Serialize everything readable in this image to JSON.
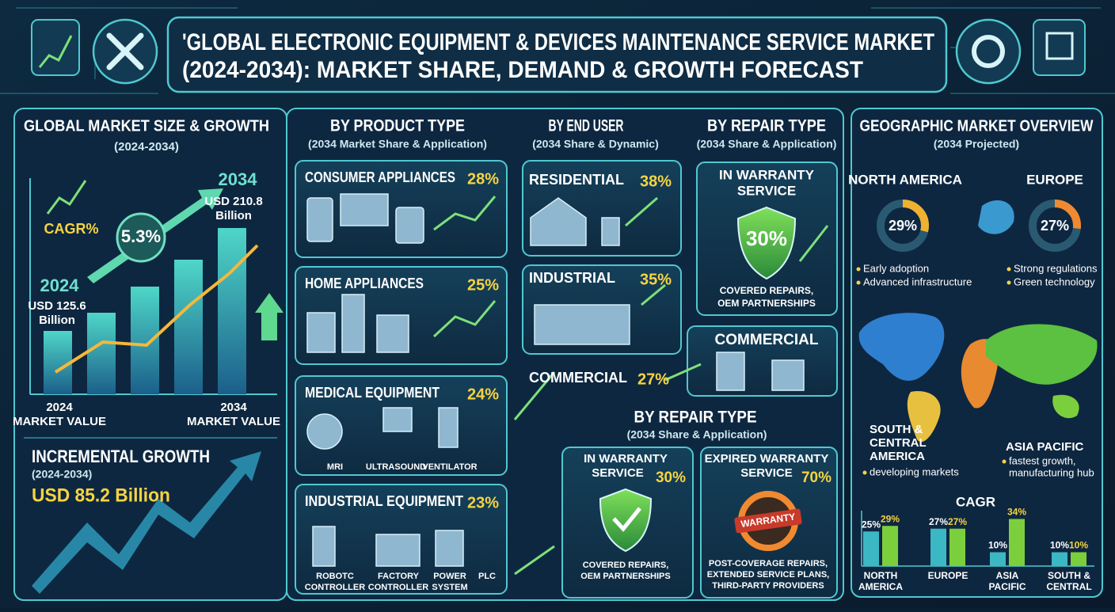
{
  "header": {
    "title_lines": [
      "'GLOBAL ELECTRONIC EQUIPMENT & DEVICES MAINTENANCE SERVICE MARKET",
      "(2024-2034): MARKET SHARE, DEMAND & GROWTH FORECAST"
    ]
  },
  "market_size": {
    "title": "GLOBAL MARKET SIZE & GROWTH",
    "period": "(2024-2034)",
    "cagr_label": "CAGR%",
    "cagr_value": "5.3%",
    "start": {
      "year": "2024",
      "value_lines": [
        "USD 125.6",
        "Billion"
      ],
      "axis_label": [
        "2024",
        "MARKET VALUE"
      ]
    },
    "end": {
      "year": "2034",
      "value_lines": [
        "USD 210.8",
        "Billion"
      ],
      "axis_label": [
        "2034",
        "MARKET VALUE"
      ]
    }
  },
  "incremental": {
    "title": "INCREMENTAL GROWTH",
    "period": "(2024-2034)",
    "value": "USD 85.2 Billion"
  },
  "product_type": {
    "title": "BY PRODUCT TYPE",
    "subtitle": "(2034 Market Share & Application)",
    "items": [
      {
        "name": "CONSUMER APPLIANCES",
        "share": "28%"
      },
      {
        "name": "HOME APPLIANCES",
        "share": "25%"
      },
      {
        "name": "MEDICAL EQUIPMENT",
        "share": "24%",
        "devices": [
          [
            "MRI"
          ],
          [
            "ULTRASOUND"
          ],
          [
            "VENTILATOR"
          ]
        ]
      },
      {
        "name": "INDUSTRIAL EQUIPMENT",
        "share": "23%",
        "devices": [
          [
            "ROBOTC",
            "CONTROLLER"
          ],
          [
            "FACTORY",
            "CONTROLLER"
          ],
          [
            "POWER",
            "SYSTEM"
          ],
          [
            "PLC"
          ]
        ]
      }
    ]
  },
  "end_user": {
    "title": "BY END USER",
    "subtitle": "(2034 Share & Dynamic)",
    "items": [
      {
        "name": "RESIDENTIAL",
        "share": "38%"
      },
      {
        "name": "INDUSTRIAL",
        "share": "35%"
      },
      {
        "name": "COMMERCIAL",
        "share": "27%"
      }
    ]
  },
  "repair_type_top": {
    "title": "BY REPAIR TYPE",
    "subtitle": "(2034 Share & Application)",
    "card": {
      "name_lines": [
        "IN WARRANTY",
        "SERVICE"
      ],
      "share": "30%",
      "note_lines": [
        "COVERED REPAIRS,",
        "OEM PARTNERSHIPS"
      ]
    },
    "commercial_card": "COMMERCIAL"
  },
  "repair_type": {
    "title": "BY REPAIR TYPE",
    "subtitle": "(2034 Share & Application)",
    "items": [
      {
        "name_lines": [
          "IN WARRANTY",
          "SERVICE"
        ],
        "share": "30%",
        "note_lines": [
          "COVERED REPAIRS,",
          "OEM PARTNERSHIPS"
        ]
      },
      {
        "name_lines": [
          "EXPIRED WARRANTY",
          "SERVICE"
        ],
        "share": "70%",
        "badge": "WARRANTY",
        "note_lines": [
          "POST-COVERAGE REPAIRS,",
          "EXTENDED SERVICE PLANS,",
          "THIRD-PARTY PROVIDERS"
        ]
      }
    ]
  },
  "geography": {
    "title": "GEOGRAPHIC MARKET OVERVIEW",
    "subtitle": "(2034 Projected)",
    "regions": [
      {
        "name_lines": [
          "NORTH AMERICA"
        ],
        "share": 29,
        "share_label": "29%",
        "color": "#f0b030",
        "notes": [
          "Early adoption",
          "Advanced infrastructure"
        ]
      },
      {
        "name_lines": [
          "EUROPE"
        ],
        "share": 27,
        "share_label": "27%",
        "color": "#f08a30",
        "notes": [
          "Strong regulations",
          "Green technology"
        ]
      },
      {
        "name_lines": [
          "SOUTH &",
          "CENTRAL",
          "AMERICA"
        ],
        "notes": [
          "developing markets"
        ]
      },
      {
        "name_lines": [
          "ASIA PACIFIC"
        ],
        "notes": [
          "fastest growth,",
          "manufacturing hub"
        ]
      }
    ],
    "cagr_chart": {
      "type": "bar",
      "title": "CAGR",
      "categories": [
        [
          "NORTH",
          "AMERICA"
        ],
        [
          "EUROPE"
        ],
        [
          "ASIA",
          "PACIFIC"
        ],
        [
          "SOUTH &",
          "CENTRAL"
        ]
      ],
      "series": [
        {
          "color": "#3cb7c4",
          "values": [
            25,
            27,
            10,
            10
          ],
          "value_labels": [
            "25%",
            "27%",
            "10%",
            "10%"
          ]
        },
        {
          "color": "#7ccf3c",
          "values": [
            29,
            27,
            34,
            10
          ],
          "value_labels": [
            "29%",
            "27%",
            "34%",
            "10%"
          ]
        }
      ]
    }
  }
}
